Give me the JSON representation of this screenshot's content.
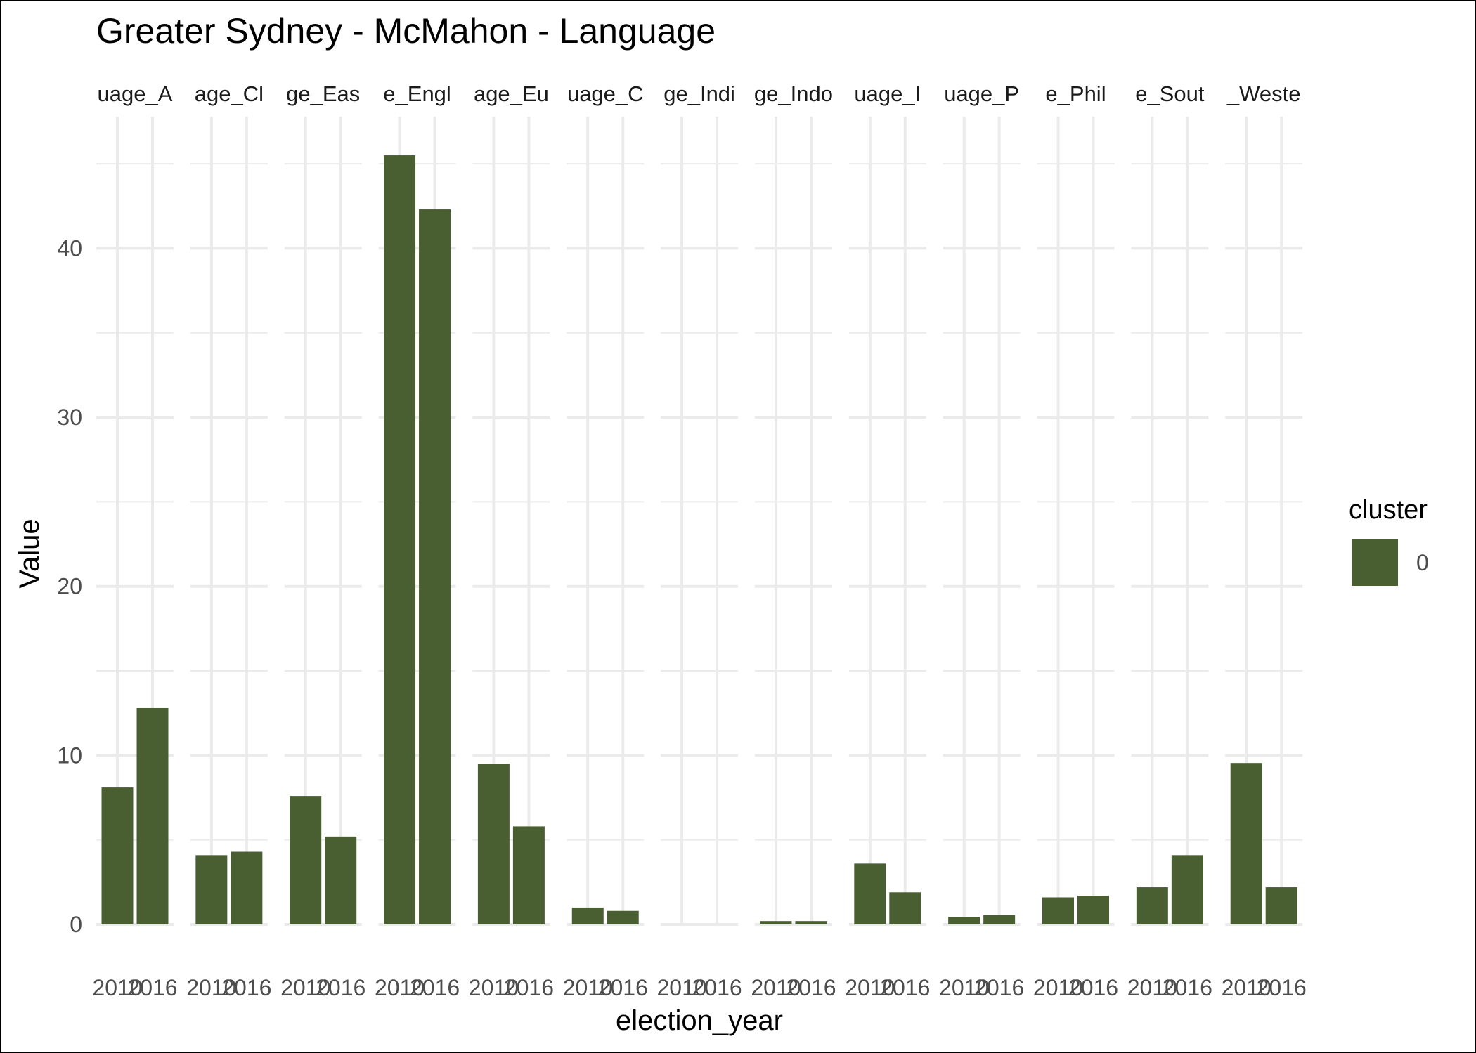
{
  "chart_data": {
    "type": "bar",
    "title": "Greater Sydney - McMahon - Language",
    "xlabel": "election_year",
    "ylabel": "Value",
    "ylim": [
      0,
      45.5
    ],
    "y_ticks": [
      0,
      10,
      20,
      30,
      40
    ],
    "x_categories": [
      "2010",
      "2016"
    ],
    "facets": [
      {
        "label": "uage_A",
        "values": [
          8.1,
          12.8
        ]
      },
      {
        "label": "age_Cl",
        "values": [
          4.1,
          4.3
        ]
      },
      {
        "label": "ge_Eas",
        "values": [
          7.6,
          5.2
        ]
      },
      {
        "label": "e_Engl",
        "values": [
          45.5,
          42.3
        ]
      },
      {
        "label": "age_Eu",
        "values": [
          9.5,
          5.8
        ]
      },
      {
        "label": "uage_C",
        "values": [
          1.0,
          0.8
        ]
      },
      {
        "label": "ge_Indi",
        "values": [
          0.0,
          0.0
        ]
      },
      {
        "label": "ge_Indo",
        "values": [
          0.2,
          0.2
        ]
      },
      {
        "label": "uage_I",
        "values": [
          3.6,
          1.9
        ]
      },
      {
        "label": "uage_P",
        "values": [
          0.45,
          0.55
        ]
      },
      {
        "label": "e_Phil",
        "values": [
          1.6,
          1.7
        ]
      },
      {
        "label": "e_Sout",
        "values": [
          2.2,
          4.1
        ]
      },
      {
        "label": "_Weste",
        "values": [
          9.55,
          2.2
        ]
      }
    ],
    "legend": {
      "title": "cluster",
      "entries": [
        {
          "label": "0",
          "color": "#4a5f31"
        }
      ],
      "position": "right"
    },
    "grid": true,
    "bar_color": "#4a5f31",
    "grid_color": "#ebebeb"
  }
}
